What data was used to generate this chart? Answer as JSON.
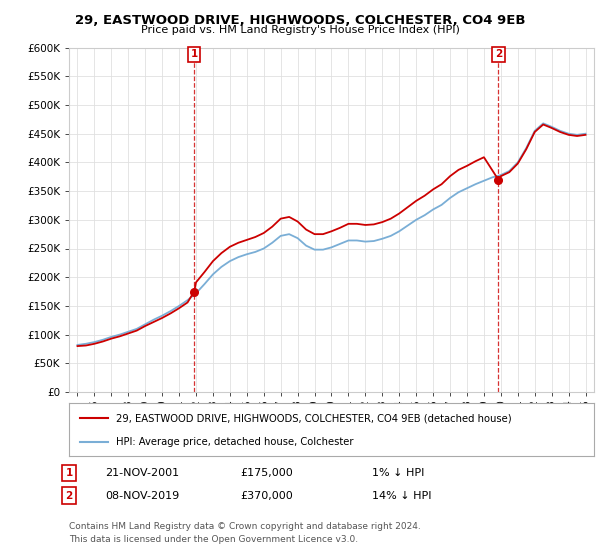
{
  "title": "29, EASTWOOD DRIVE, HIGHWOODS, COLCHESTER, CO4 9EB",
  "subtitle": "Price paid vs. HM Land Registry's House Price Index (HPI)",
  "ylabel_ticks": [
    "£0",
    "£50K",
    "£100K",
    "£150K",
    "£200K",
    "£250K",
    "£300K",
    "£350K",
    "£400K",
    "£450K",
    "£500K",
    "£550K",
    "£600K"
  ],
  "ylim": [
    0,
    600000
  ],
  "xlim_start": 1994.5,
  "xlim_end": 2025.5,
  "sale1_date": 2001.89,
  "sale1_price": 175000,
  "sale1_label": "1",
  "sale2_date": 2019.85,
  "sale2_price": 370000,
  "sale2_label": "2",
  "legend_line1": "29, EASTWOOD DRIVE, HIGHWOODS, COLCHESTER, CO4 9EB (detached house)",
  "legend_line2": "HPI: Average price, detached house, Colchester",
  "ann1_num": "1",
  "ann1_date": "21-NOV-2001",
  "ann1_price": "£175,000",
  "ann1_hpi": "1% ↓ HPI",
  "ann2_num": "2",
  "ann2_date": "08-NOV-2019",
  "ann2_price": "£370,000",
  "ann2_hpi": "14% ↓ HPI",
  "footnote_line1": "Contains HM Land Registry data © Crown copyright and database right 2024.",
  "footnote_line2": "This data is licensed under the Open Government Licence v3.0.",
  "house_color": "#cc0000",
  "hpi_color": "#7aaed6",
  "background_color": "#ffffff",
  "grid_color": "#e0e0e0",
  "hpi_years": [
    1995,
    1995.5,
    1996,
    1996.5,
    1997,
    1997.5,
    1998,
    1998.5,
    1999,
    1999.5,
    2000,
    2000.5,
    2001,
    2001.5,
    2002,
    2002.5,
    2003,
    2003.5,
    2004,
    2004.5,
    2005,
    2005.5,
    2006,
    2006.5,
    2007,
    2007.5,
    2008,
    2008.5,
    2009,
    2009.5,
    2010,
    2010.5,
    2011,
    2011.5,
    2012,
    2012.5,
    2013,
    2013.5,
    2014,
    2014.5,
    2015,
    2015.5,
    2016,
    2016.5,
    2017,
    2017.5,
    2018,
    2018.5,
    2019,
    2019.5,
    2020,
    2020.5,
    2021,
    2021.5,
    2022,
    2022.5,
    2023,
    2023.5,
    2024,
    2024.5,
    2025
  ],
  "hpi_vals": [
    82000,
    84000,
    87000,
    91000,
    96000,
    100000,
    105000,
    110000,
    118000,
    126000,
    133000,
    141000,
    150000,
    160000,
    172000,
    188000,
    205000,
    218000,
    228000,
    235000,
    240000,
    244000,
    250000,
    260000,
    272000,
    275000,
    268000,
    255000,
    248000,
    248000,
    252000,
    258000,
    264000,
    264000,
    262000,
    263000,
    267000,
    272000,
    280000,
    290000,
    300000,
    308000,
    318000,
    326000,
    338000,
    348000,
    355000,
    362000,
    368000,
    374000,
    378000,
    385000,
    400000,
    425000,
    455000,
    468000,
    462000,
    455000,
    450000,
    448000,
    450000
  ],
  "prop_years": [
    1995,
    1995.5,
    1996,
    1996.5,
    1997,
    1997.5,
    1998,
    1998.5,
    1999,
    1999.5,
    2000,
    2000.5,
    2001,
    2001.5,
    2001.89,
    2002,
    2002.5,
    2003,
    2003.5,
    2004,
    2004.5,
    2005,
    2005.5,
    2006,
    2006.5,
    2007,
    2007.5,
    2008,
    2008.5,
    2009,
    2009.5,
    2010,
    2010.5,
    2011,
    2011.5,
    2012,
    2012.5,
    2013,
    2013.5,
    2014,
    2014.5,
    2015,
    2015.5,
    2016,
    2016.5,
    2017,
    2017.5,
    2018,
    2018.5,
    2019,
    2019.85,
    2020,
    2020.5,
    2021,
    2021.5,
    2022,
    2022.5,
    2023,
    2023.5,
    2024,
    2024.5,
    2025
  ],
  "prop_vals": [
    80000,
    81000,
    84000,
    88000,
    93000,
    97000,
    102000,
    107000,
    115000,
    122000,
    129000,
    137000,
    146000,
    156000,
    175000,
    191000,
    209000,
    228000,
    242000,
    253000,
    260000,
    265000,
    270000,
    277000,
    288000,
    302000,
    305000,
    297000,
    283000,
    275000,
    275000,
    280000,
    286000,
    293000,
    293000,
    291000,
    292000,
    296000,
    302000,
    311000,
    322000,
    333000,
    342000,
    353000,
    362000,
    376000,
    387000,
    394000,
    402000,
    409000,
    370000,
    376000,
    383000,
    398000,
    423000,
    453000,
    466000,
    460000,
    453000,
    448000,
    446000,
    448000
  ]
}
